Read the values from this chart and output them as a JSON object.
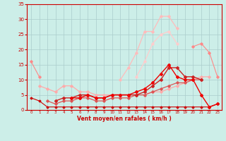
{
  "background_color": "#cceee8",
  "grid_color": "#aacccc",
  "x_labels": [
    "0",
    "1",
    "2",
    "3",
    "4",
    "5",
    "6",
    "7",
    "8",
    "9",
    "10",
    "11",
    "12",
    "13",
    "14",
    "15",
    "16",
    "17",
    "18",
    "19",
    "20",
    "21",
    "22",
    "23"
  ],
  "x_range": [
    -0.5,
    23.5
  ],
  "y_range": [
    0,
    35
  ],
  "y_ticks": [
    0,
    5,
    10,
    15,
    20,
    25,
    30,
    35
  ],
  "xlabel": "Vent moyen/en rafales ( km/h )",
  "lines": [
    {
      "y": [
        16,
        11,
        null,
        null,
        null,
        null,
        null,
        null,
        null,
        null,
        null,
        null,
        null,
        null,
        null,
        null,
        null,
        null,
        null,
        null,
        null,
        null,
        null,
        null
      ],
      "color": "#ff8888",
      "lw": 0.8,
      "marker": "D",
      "ms": 1.8
    },
    {
      "y": [
        null,
        null,
        null,
        null,
        null,
        null,
        null,
        null,
        null,
        null,
        null,
        null,
        null,
        null,
        null,
        null,
        null,
        null,
        null,
        null,
        21,
        22,
        19,
        11
      ],
      "color": "#ff8888",
      "lw": 0.8,
      "marker": "D",
      "ms": 1.8
    },
    {
      "y": [
        4,
        3,
        1,
        1,
        1,
        1,
        1,
        1,
        1,
        1,
        1,
        1,
        1,
        1,
        1,
        1,
        1,
        1,
        1,
        1,
        1,
        1,
        1,
        2
      ],
      "color": "#cc0000",
      "lw": 0.8,
      "marker": "D",
      "ms": 1.5
    },
    {
      "y": [
        null,
        8,
        7,
        6,
        8,
        8,
        6,
        6,
        5,
        5,
        5,
        5,
        5,
        5,
        5,
        6,
        6,
        7,
        8,
        9,
        10,
        11,
        11,
        null
      ],
      "color": "#ffaaaa",
      "lw": 0.9,
      "marker": "D",
      "ms": 1.8
    },
    {
      "y": [
        null,
        null,
        3,
        2,
        3,
        3,
        4,
        4,
        3,
        3,
        4,
        4,
        4,
        5,
        5,
        6,
        7,
        8,
        9,
        9,
        10,
        10,
        null,
        null
      ],
      "color": "#dd5555",
      "lw": 0.9,
      "marker": "D",
      "ms": 1.8
    },
    {
      "y": [
        null,
        null,
        null,
        3,
        4,
        4,
        5,
        5,
        4,
        4,
        5,
        5,
        5,
        5,
        6,
        8,
        10,
        14,
        14,
        11,
        11,
        10,
        null,
        null
      ],
      "color": "#cc2222",
      "lw": 1.0,
      "marker": "D",
      "ms": 2.0
    },
    {
      "y": [
        null,
        null,
        null,
        null,
        null,
        4,
        4,
        5,
        4,
        4,
        5,
        5,
        5,
        6,
        7,
        9,
        12,
        15,
        11,
        10,
        10,
        5,
        1,
        2
      ],
      "color": "#ee0000",
      "lw": 1.0,
      "marker": "D",
      "ms": 2.0
    },
    {
      "y": [
        null,
        null,
        null,
        null,
        null,
        null,
        null,
        null,
        null,
        null,
        null,
        10,
        14,
        19,
        26,
        26,
        31,
        31,
        27,
        null,
        null,
        null,
        null,
        null
      ],
      "color": "#ffbbbb",
      "lw": 0.9,
      "marker": "D",
      "ms": 1.8
    },
    {
      "y": [
        null,
        null,
        null,
        null,
        null,
        null,
        null,
        null,
        null,
        null,
        null,
        null,
        null,
        11,
        16,
        22,
        25,
        26,
        22,
        null,
        null,
        null,
        null,
        null
      ],
      "color": "#ffcccc",
      "lw": 0.9,
      "marker": "D",
      "ms": 1.8
    }
  ],
  "tick_color": "#cc0000",
  "label_color": "#cc0000",
  "axis_color": "#cc0000"
}
